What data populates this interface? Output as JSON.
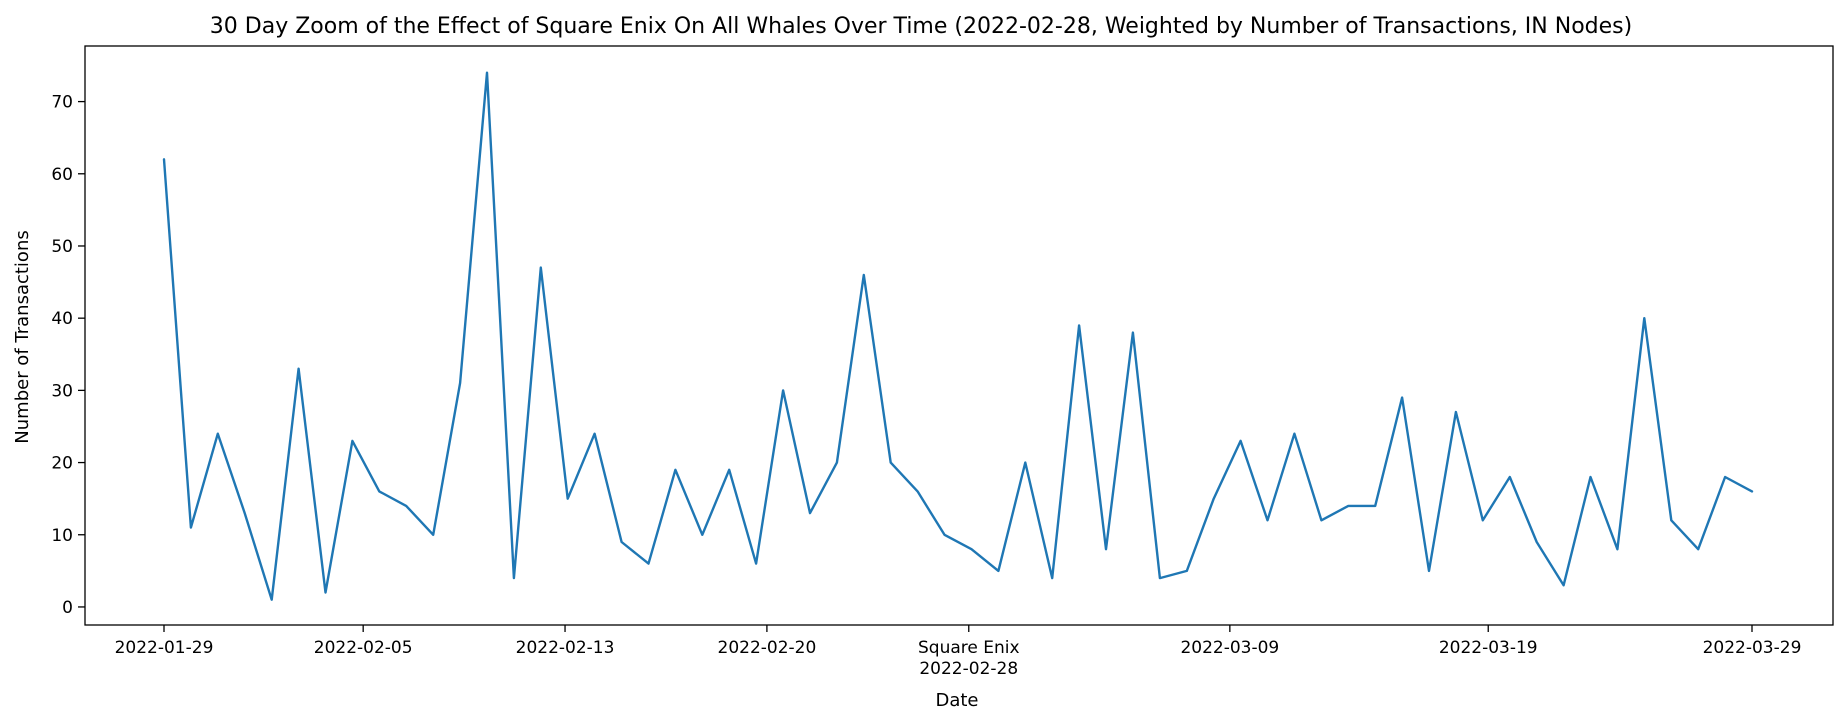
{
  "chart_data": {
    "type": "line",
    "title": "30 Day Zoom of the Effect of Square Enix On All Whales Over Time (2022-02-28, Weighted by Number of Transactions, IN Nodes)",
    "xlabel": "Date",
    "ylabel": "Number of Transactions",
    "ylim": [
      -2.5,
      77.7
    ],
    "yticks": [
      0,
      10,
      20,
      30,
      40,
      50,
      60,
      70
    ],
    "xticks": [
      {
        "label": "2022-01-29",
        "index": 0
      },
      {
        "label": "2022-02-05",
        "index": 7.4
      },
      {
        "label": "2022-02-13",
        "index": 14.9
      },
      {
        "label": "2022-02-20",
        "index": 22.4
      },
      {
        "label": "2022-02-28",
        "index": 29.9,
        "annotation": "Square Enix"
      },
      {
        "label": "2022-03-09",
        "index": 39.6
      },
      {
        "label": "2022-03-19",
        "index": 49.2
      },
      {
        "label": "2022-03-29",
        "index": 59
      }
    ],
    "grid": false,
    "series": [
      {
        "color": "#1f77b4",
        "values": [
          62,
          11,
          24,
          13,
          1,
          33,
          2,
          23,
          16,
          14,
          10,
          31,
          74,
          4,
          47,
          15,
          24,
          9,
          6,
          19,
          10,
          19,
          6,
          30,
          13,
          20,
          46,
          20,
          16,
          10,
          8,
          5,
          20,
          4,
          39,
          8,
          38,
          4,
          5,
          15,
          23,
          12,
          24,
          12,
          14,
          14,
          29,
          5,
          27,
          12,
          18,
          9,
          3,
          18,
          8,
          40,
          12,
          8,
          18,
          16
        ]
      }
    ]
  }
}
